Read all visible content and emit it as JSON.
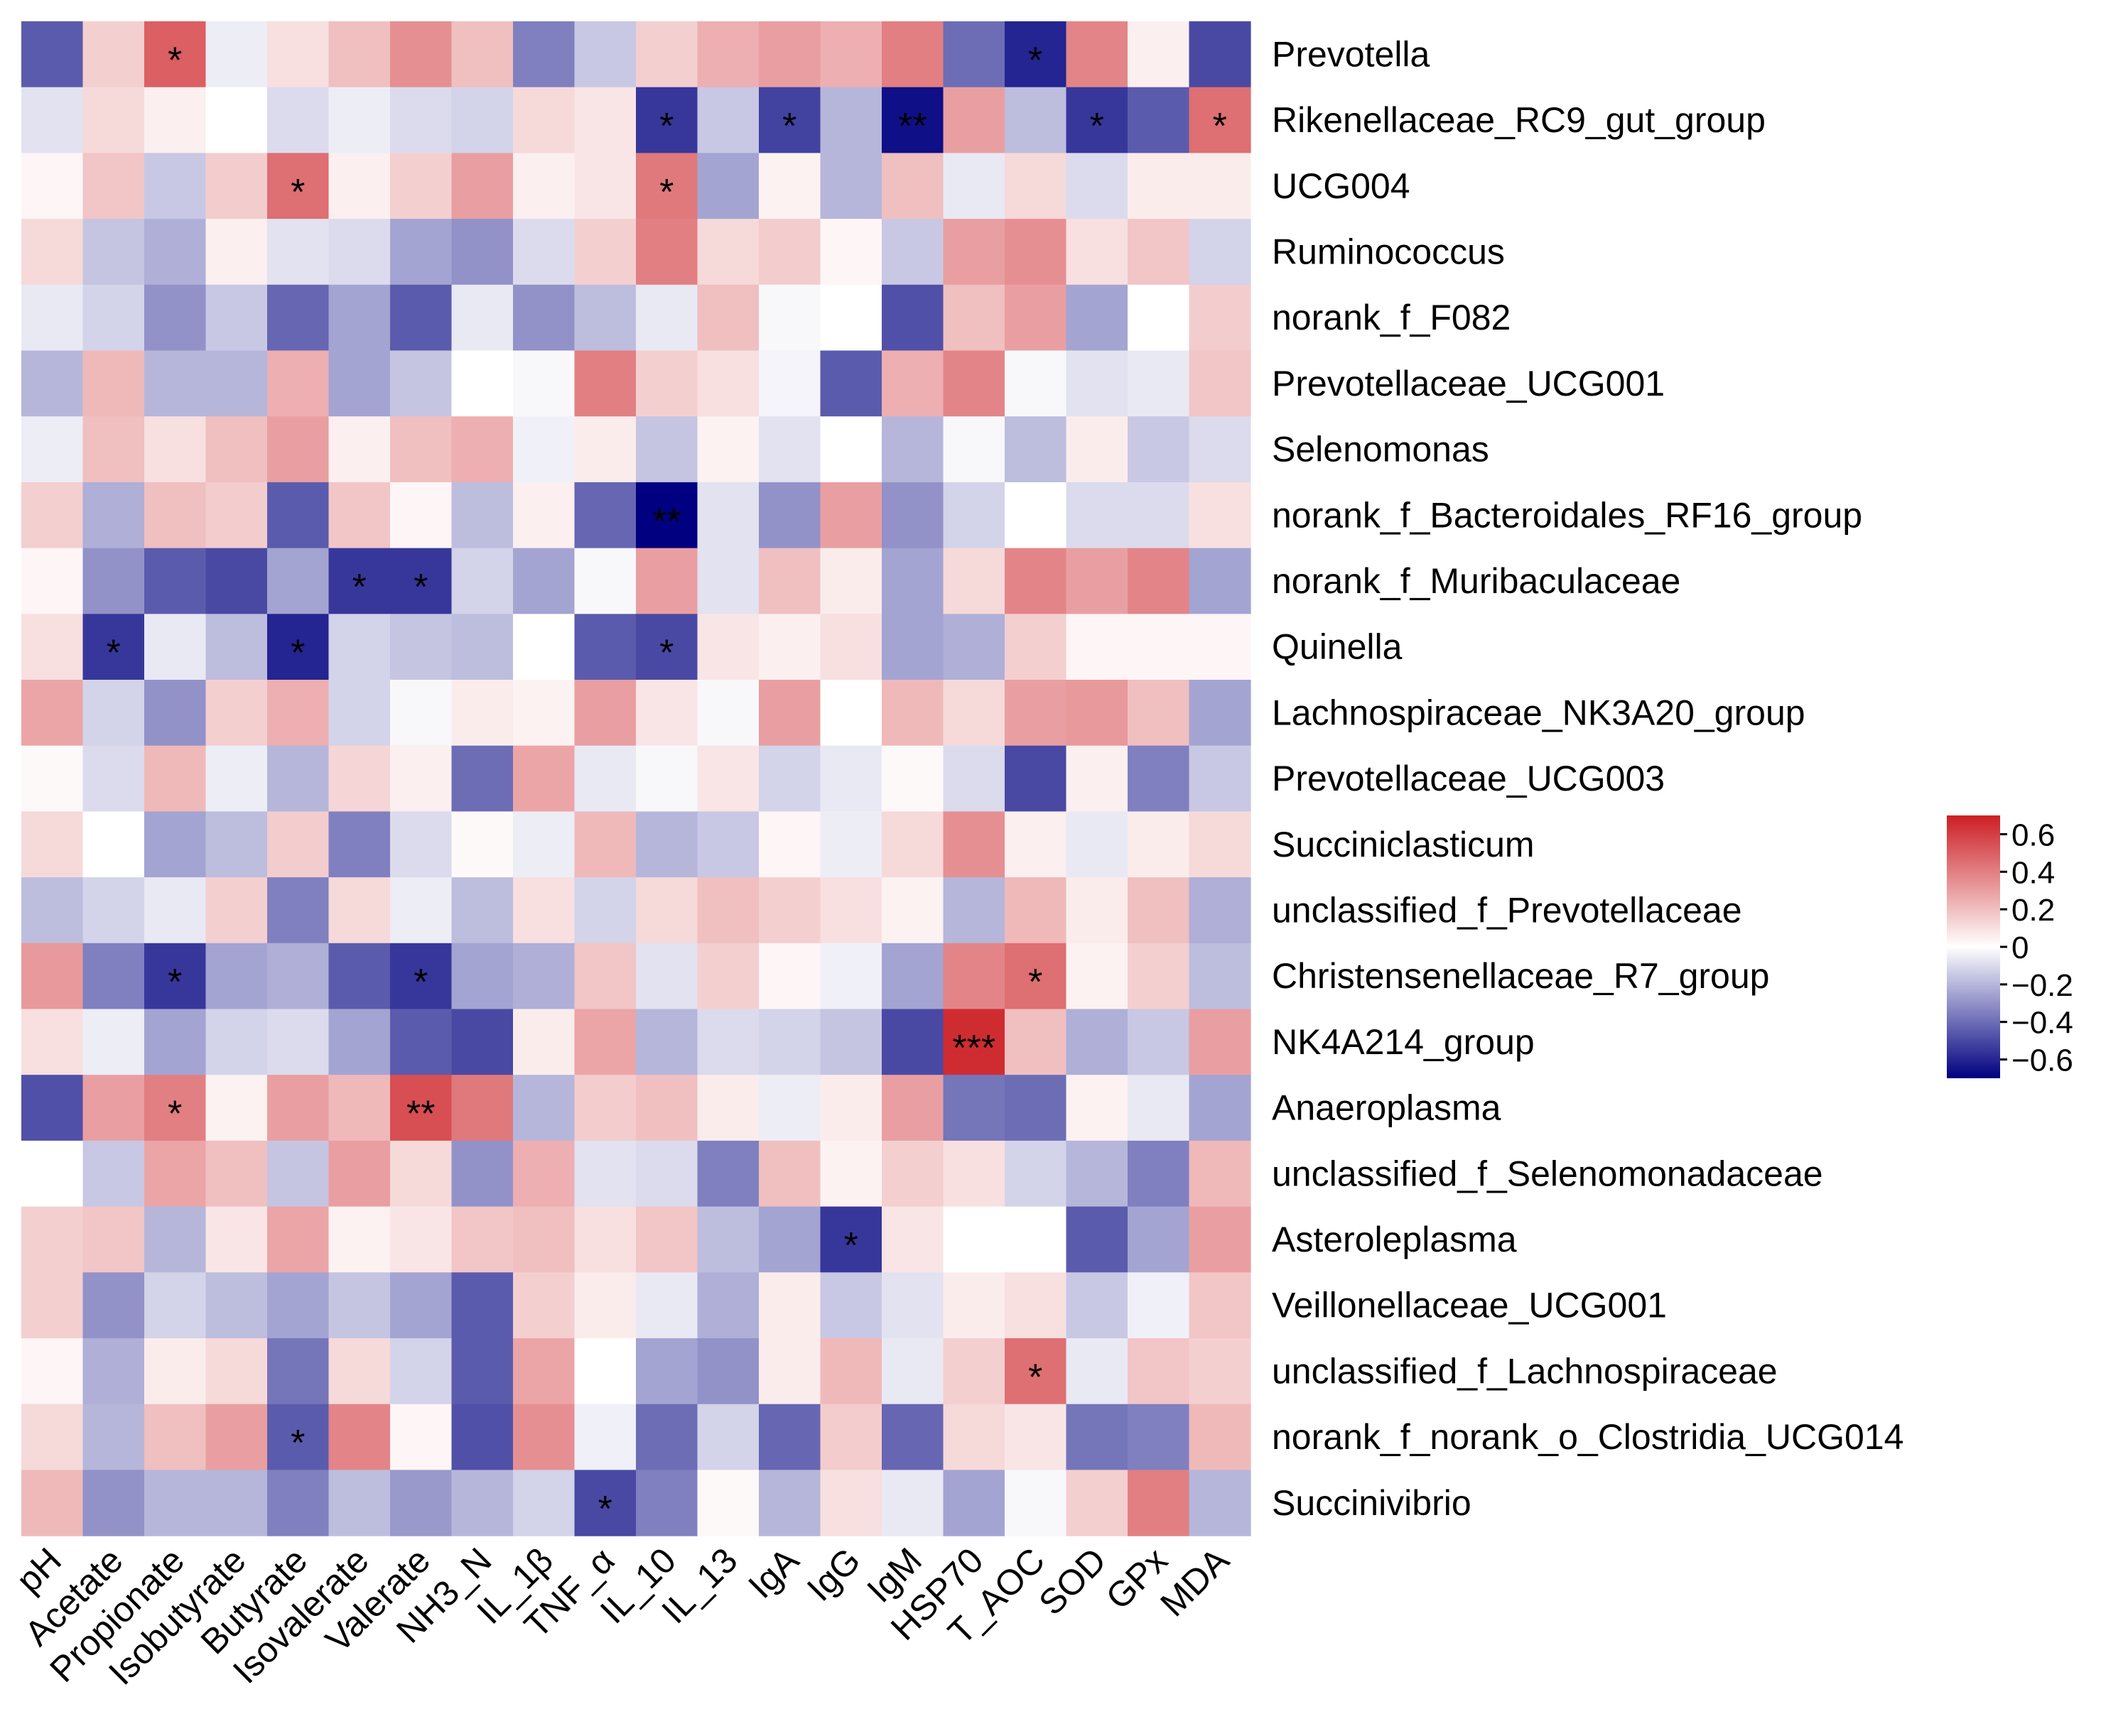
{
  "chart_data": {
    "type": "heatmap",
    "title": "",
    "columns": [
      "pH",
      "Acetate",
      "Propionate",
      "Isobutyrate",
      "Butyrate",
      "Isovalerate",
      "Valerate",
      "NH3_N",
      "IL_1β",
      "TNF_α",
      "IL_10",
      "IL_13",
      "IgA",
      "IgG",
      "IgM",
      "HSP70",
      "T_AOC",
      "SOD",
      "GPx",
      "MDA"
    ],
    "rows": [
      "Prevotella",
      "Rikenellaceae_RC9_gut_group",
      "UCG004",
      "Ruminococcus",
      "norank_f_F082",
      "Prevotellaceae_UCG001",
      "Selenomonas",
      "norank_f_Bacteroidales_RF16_group",
      "norank_f_Muribaculaceae",
      "Quinella",
      "Lachnospiraceae_NK3A20_group",
      "Prevotellaceae_UCG003",
      "Succiniclasticum",
      "unclassified_f_Prevotellaceae",
      "Christensenellaceae_R7_group",
      "NK4A214_group",
      "Anaeroplasma",
      "unclassified_f_Selenomonadaceae",
      "Asteroleplasma",
      "Veillonellaceae_UCG001",
      "unclassified_f_Lachnospiraceae",
      "norank_f_norank_o_Clostridia_UCG014",
      "Succinivibrio"
    ],
    "values": [
      [
        -0.45,
        0.15,
        0.5,
        -0.05,
        0.1,
        0.2,
        0.35,
        0.2,
        -0.35,
        -0.15,
        0.15,
        0.25,
        0.3,
        0.25,
        0.4,
        -0.4,
        -0.6,
        0.38,
        0.05,
        -0.5
      ],
      [
        -0.08,
        0.12,
        0.05,
        0,
        -0.1,
        -0.05,
        -0.1,
        -0.12,
        0.12,
        0.08,
        -0.55,
        -0.15,
        -0.52,
        -0.2,
        -0.66,
        0.3,
        -0.18,
        -0.55,
        -0.45,
        0.45
      ],
      [
        0.03,
        0.18,
        -0.15,
        0.16,
        0.45,
        0.05,
        0.15,
        0.3,
        0.05,
        0.08,
        0.42,
        -0.25,
        0.04,
        -0.2,
        0.2,
        -0.06,
        0.12,
        -0.1,
        0.06,
        0.06
      ],
      [
        0.12,
        -0.16,
        -0.22,
        0.05,
        -0.08,
        -0.1,
        -0.25,
        -0.3,
        -0.1,
        0.15,
        0.4,
        0.12,
        0.16,
        0.03,
        -0.15,
        0.3,
        0.35,
        0.1,
        0.18,
        -0.12
      ],
      [
        -0.06,
        -0.12,
        -0.3,
        -0.15,
        -0.42,
        -0.25,
        -0.45,
        -0.06,
        -0.3,
        -0.18,
        -0.06,
        0.2,
        -0.02,
        0,
        -0.48,
        0.2,
        0.3,
        -0.25,
        0,
        0.16
      ],
      [
        -0.2,
        0.22,
        -0.2,
        -0.2,
        0.25,
        -0.25,
        -0.16,
        0,
        -0.02,
        0.4,
        0.15,
        0.1,
        -0.03,
        -0.45,
        0.25,
        0.38,
        -0.02,
        -0.08,
        -0.06,
        0.18
      ],
      [
        -0.05,
        0.2,
        0.1,
        0.2,
        0.3,
        0.05,
        0.2,
        0.25,
        -0.04,
        0.06,
        -0.16,
        0.04,
        -0.08,
        0,
        -0.2,
        -0.02,
        -0.18,
        0.06,
        -0.15,
        -0.1
      ],
      [
        0.15,
        -0.22,
        0.2,
        0.16,
        -0.45,
        0.18,
        0.03,
        -0.18,
        0.05,
        -0.42,
        -0.7,
        -0.08,
        -0.3,
        0.3,
        -0.3,
        -0.12,
        0,
        -0.1,
        -0.1,
        0.1
      ],
      [
        0.03,
        -0.3,
        -0.45,
        -0.5,
        -0.25,
        -0.55,
        -0.55,
        -0.12,
        -0.25,
        -0.02,
        0.3,
        -0.08,
        0.2,
        0.06,
        -0.25,
        0.12,
        0.38,
        0.3,
        0.38,
        -0.25
      ],
      [
        0.1,
        -0.55,
        -0.06,
        -0.18,
        -0.6,
        -0.12,
        -0.16,
        -0.18,
        0,
        -0.45,
        -0.5,
        0.08,
        0.05,
        0.1,
        -0.25,
        -0.22,
        0.15,
        0.03,
        0.03,
        0.03
      ],
      [
        0.28,
        -0.12,
        -0.3,
        0.15,
        0.25,
        -0.12,
        -0.02,
        0.06,
        0.04,
        0.3,
        0.08,
        -0.02,
        0.3,
        0,
        0.22,
        0.12,
        0.3,
        0.32,
        0.2,
        -0.25
      ],
      [
        0.02,
        -0.1,
        0.22,
        -0.05,
        -0.2,
        0.13,
        0.05,
        -0.4,
        0.28,
        -0.06,
        -0.02,
        0.08,
        -0.12,
        -0.06,
        0.02,
        -0.1,
        -0.5,
        0.05,
        -0.35,
        -0.15
      ],
      [
        0.12,
        0,
        -0.25,
        -0.18,
        0.16,
        -0.35,
        -0.1,
        0.02,
        -0.05,
        0.22,
        -0.2,
        -0.15,
        0.03,
        -0.05,
        0.12,
        0.35,
        0.05,
        -0.06,
        0.06,
        0.12
      ],
      [
        -0.18,
        -0.12,
        -0.06,
        0.15,
        -0.35,
        0.12,
        -0.05,
        -0.18,
        0.1,
        -0.12,
        0.12,
        0.2,
        0.15,
        0.1,
        0.04,
        -0.2,
        0.22,
        0.06,
        0.2,
        -0.22
      ],
      [
        0.32,
        -0.35,
        -0.55,
        -0.25,
        -0.22,
        -0.45,
        -0.55,
        -0.25,
        -0.22,
        0.18,
        -0.08,
        0.15,
        0.03,
        -0.04,
        -0.25,
        0.38,
        0.45,
        0.04,
        0.15,
        -0.18
      ],
      [
        0.1,
        -0.05,
        -0.25,
        -0.12,
        -0.1,
        -0.25,
        -0.45,
        -0.5,
        0.06,
        0.28,
        -0.2,
        -0.1,
        -0.12,
        -0.16,
        -0.5,
        0.66,
        0.2,
        -0.22,
        -0.15,
        0.3
      ],
      [
        -0.48,
        0.3,
        0.4,
        0.04,
        0.3,
        0.22,
        0.55,
        0.42,
        -0.2,
        0.16,
        0.2,
        0.06,
        -0.05,
        0.06,
        0.3,
        -0.38,
        -0.4,
        0.04,
        -0.06,
        -0.25
      ],
      [
        0,
        -0.15,
        0.28,
        0.2,
        -0.16,
        0.3,
        0.12,
        -0.3,
        0.25,
        -0.08,
        -0.1,
        -0.35,
        0.2,
        0.04,
        0.15,
        0.1,
        -0.12,
        -0.2,
        -0.35,
        0.22
      ],
      [
        0.15,
        0.18,
        -0.2,
        0.08,
        0.28,
        0.04,
        0.08,
        0.18,
        0.2,
        0.1,
        0.18,
        -0.18,
        -0.25,
        -0.55,
        0.08,
        0,
        0,
        -0.45,
        -0.25,
        0.3
      ],
      [
        0.15,
        -0.3,
        -0.12,
        -0.18,
        -0.25,
        -0.16,
        -0.25,
        -0.45,
        0.15,
        0.06,
        -0.06,
        -0.22,
        0.06,
        -0.15,
        -0.08,
        0.06,
        0.1,
        -0.15,
        -0.04,
        0.18
      ],
      [
        0.03,
        -0.22,
        0.06,
        0.12,
        -0.38,
        0.12,
        -0.12,
        -0.45,
        0.28,
        0,
        -0.25,
        -0.3,
        0.06,
        0.22,
        -0.06,
        0.15,
        0.45,
        -0.06,
        0.18,
        0.15
      ],
      [
        0.12,
        -0.2,
        0.2,
        0.3,
        -0.45,
        0.38,
        0.03,
        -0.48,
        0.35,
        -0.04,
        -0.4,
        -0.12,
        -0.42,
        0.16,
        -0.42,
        0.12,
        0.08,
        -0.38,
        -0.35,
        0.22
      ],
      [
        0.22,
        -0.3,
        -0.2,
        -0.2,
        -0.35,
        -0.18,
        -0.28,
        -0.2,
        -0.12,
        -0.5,
        -0.35,
        0.02,
        -0.2,
        0.1,
        -0.06,
        -0.25,
        -0.02,
        0.15,
        0.4,
        -0.2
      ]
    ],
    "significance": [
      [
        "",
        "",
        "*",
        "",
        "",
        "",
        "",
        "",
        "",
        "",
        "",
        "",
        "",
        "",
        "",
        "",
        "*",
        "",
        "",
        ""
      ],
      [
        "",
        "",
        "",
        "",
        "",
        "",
        "",
        "",
        "",
        "",
        "*",
        "",
        "*",
        "",
        "**",
        "",
        "",
        "*",
        "",
        "*"
      ],
      [
        "",
        "",
        "",
        "",
        "*",
        "",
        "",
        "",
        "",
        "",
        "*",
        "",
        "",
        "",
        "",
        "",
        "",
        "",
        "",
        ""
      ],
      [
        "",
        "",
        "",
        "",
        "",
        "",
        "",
        "",
        "",
        "",
        "",
        "",
        "",
        "",
        "",
        "",
        "",
        "",
        "",
        ""
      ],
      [
        "",
        "",
        "",
        "",
        "",
        "",
        "",
        "",
        "",
        "",
        "",
        "",
        "",
        "",
        "",
        "",
        "",
        "",
        "",
        ""
      ],
      [
        "",
        "",
        "",
        "",
        "",
        "",
        "",
        "",
        "",
        "",
        "",
        "",
        "",
        "",
        "",
        "",
        "",
        "",
        "",
        ""
      ],
      [
        "",
        "",
        "",
        "",
        "",
        "",
        "",
        "",
        "",
        "",
        "",
        "",
        "",
        "",
        "",
        "",
        "",
        "",
        "",
        ""
      ],
      [
        "",
        "",
        "",
        "",
        "",
        "",
        "",
        "",
        "",
        "",
        "**",
        "",
        "",
        "",
        "",
        "",
        "",
        "",
        "",
        ""
      ],
      [
        "",
        "",
        "",
        "",
        "",
        "*",
        "*",
        "",
        "",
        "",
        "",
        "",
        "",
        "",
        "",
        "",
        "",
        "",
        "",
        ""
      ],
      [
        "",
        "*",
        "",
        "",
        "*",
        "",
        "",
        "",
        "",
        "",
        "*",
        "",
        "",
        "",
        "",
        "",
        "",
        "",
        "",
        ""
      ],
      [
        "",
        "",
        "",
        "",
        "",
        "",
        "",
        "",
        "",
        "",
        "",
        "",
        "",
        "",
        "",
        "",
        "",
        "",
        "",
        ""
      ],
      [
        "",
        "",
        "",
        "",
        "",
        "",
        "",
        "",
        "",
        "",
        "",
        "",
        "",
        "",
        "",
        "",
        "",
        "",
        "",
        ""
      ],
      [
        "",
        "",
        "",
        "",
        "",
        "",
        "",
        "",
        "",
        "",
        "",
        "",
        "",
        "",
        "",
        "",
        "",
        "",
        "",
        ""
      ],
      [
        "",
        "",
        "",
        "",
        "",
        "",
        "",
        "",
        "",
        "",
        "",
        "",
        "",
        "",
        "",
        "",
        "",
        "",
        "",
        ""
      ],
      [
        "",
        "",
        "*",
        "",
        "",
        "",
        "*",
        "",
        "",
        "",
        "",
        "",
        "",
        "",
        "",
        "",
        "*",
        "",
        "",
        ""
      ],
      [
        "",
        "",
        "",
        "",
        "",
        "",
        "",
        "",
        "",
        "",
        "",
        "",
        "",
        "",
        "",
        "***",
        "",
        "",
        "",
        ""
      ],
      [
        "",
        "",
        "*",
        "",
        "",
        "",
        "**",
        "",
        "",
        "",
        "",
        "",
        "",
        "",
        "",
        "",
        "",
        "",
        "",
        ""
      ],
      [
        "",
        "",
        "",
        "",
        "",
        "",
        "",
        "",
        "",
        "",
        "",
        "",
        "",
        "",
        "",
        "",
        "",
        "",
        "",
        ""
      ],
      [
        "",
        "",
        "",
        "",
        "",
        "",
        "",
        "",
        "",
        "",
        "",
        "",
        "",
        "*",
        "",
        "",
        "",
        "",
        "",
        ""
      ],
      [
        "",
        "",
        "",
        "",
        "",
        "",
        "",
        "",
        "",
        "",
        "",
        "",
        "",
        "",
        "",
        "",
        "",
        "",
        "",
        ""
      ],
      [
        "",
        "",
        "",
        "",
        "",
        "",
        "",
        "",
        "",
        "",
        "",
        "",
        "",
        "",
        "",
        "",
        "*",
        "",
        "",
        ""
      ],
      [
        "",
        "",
        "",
        "",
        "*",
        "",
        "",
        "",
        "",
        "",
        "",
        "",
        "",
        "",
        "",
        "",
        "",
        "",
        "",
        ""
      ],
      [
        "",
        "",
        "",
        "",
        "",
        "",
        "",
        "",
        "",
        "*",
        "",
        "",
        "",
        "",
        "",
        "",
        "",
        "",
        "",
        ""
      ]
    ],
    "color_scale": {
      "min": -0.7,
      "max": 0.7,
      "low_color": "#000080",
      "mid_color": "#ffffff",
      "high_color": "#cc1f24",
      "ticks": [
        0.6,
        0.4,
        0.2,
        0,
        -0.2,
        -0.4,
        -0.6
      ],
      "tick_labels": [
        "0.6",
        "0.4",
        "0.2",
        "0",
        "−0.2",
        "−0.4",
        "−0.6"
      ]
    },
    "xlabel": "",
    "ylabel": "",
    "legend": "right"
  }
}
